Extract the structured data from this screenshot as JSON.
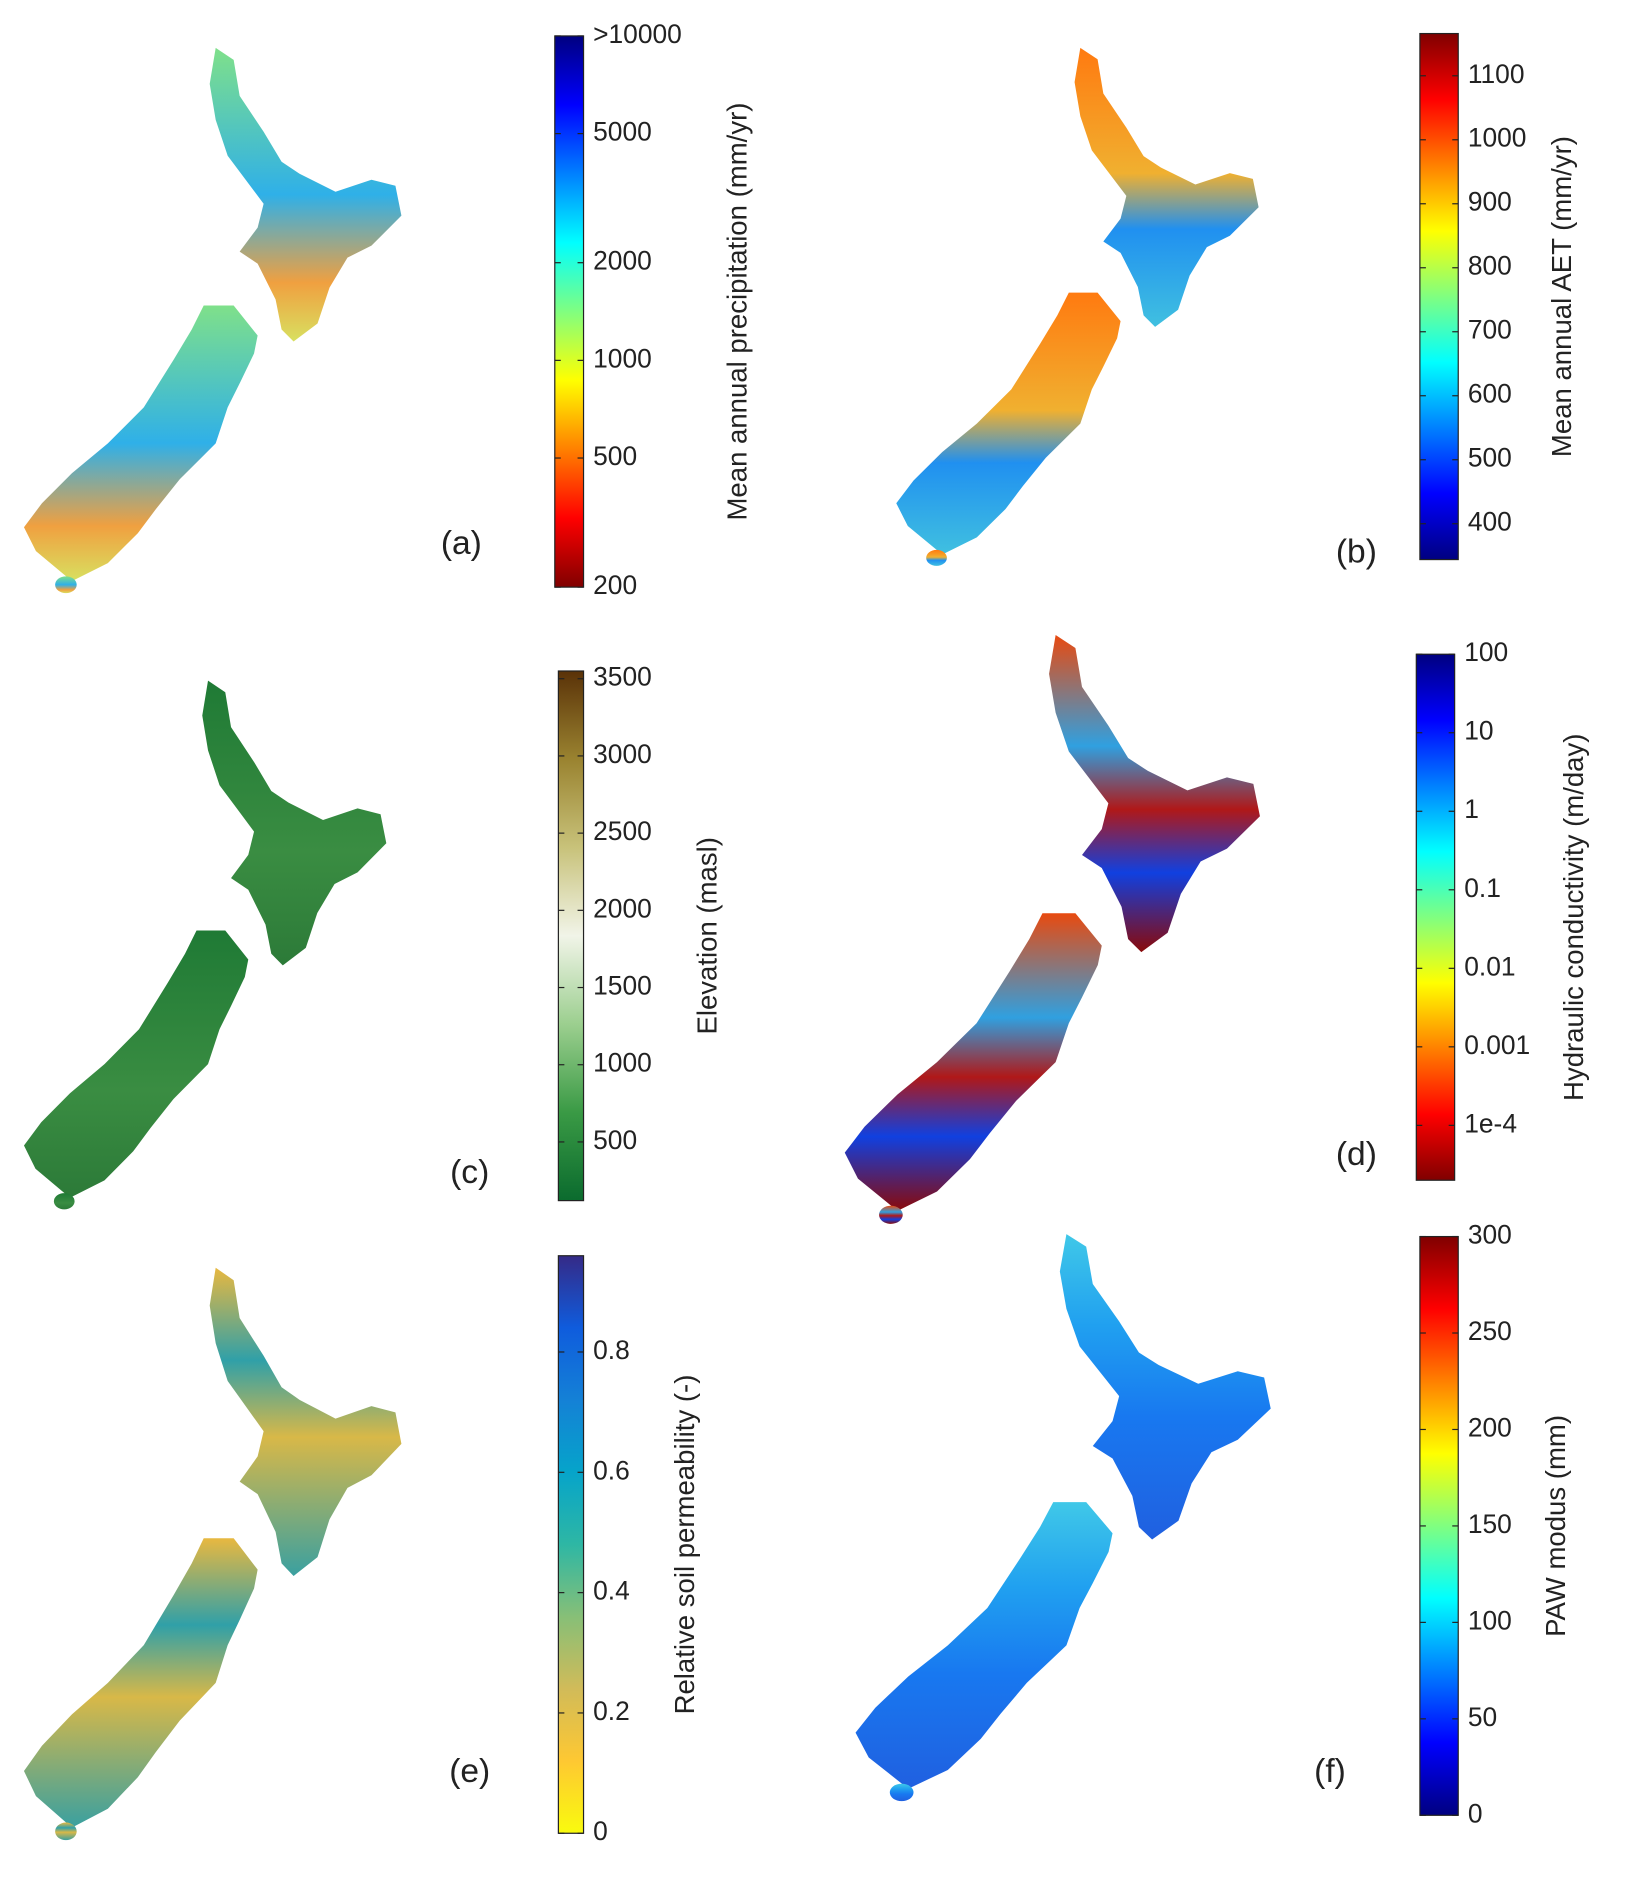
{
  "panels": [
    {
      "label": "(a)",
      "colorbar": {
        "label": "Mean annual precipitation (mm/yr)",
        "scale": "log",
        "lim": [
          200,
          10000
        ],
        "ticks": [
          200,
          500,
          1000,
          2000,
          5000,
          {
            "value": 10000,
            "label": ">10000"
          }
        ],
        "colors": [
          "#800000",
          "#ff0000",
          "#ff8000",
          "#ffff00",
          "#80ff80",
          "#00ffff",
          "#0080ff",
          "#0000ff",
          "#000080"
        ]
      }
    },
    {
      "label": "(b)",
      "colorbar": {
        "label": "Mean annual AET (mm/yr)",
        "scale": "linear",
        "lim": [
          344,
          1166
        ],
        "ticks": [
          400,
          500,
          600,
          700,
          800,
          900,
          1000,
          1100
        ],
        "colors": [
          "#000080",
          "#0000ff",
          "#0080ff",
          "#00ffff",
          "#80ff80",
          "#ffff00",
          "#ff8000",
          "#ff0000",
          "#800000"
        ]
      }
    },
    {
      "label": "(c)",
      "colorbar": {
        "label": "Elevation (masl)",
        "scale": "linear",
        "lim": [
          120,
          3550
        ],
        "ticks": [
          500,
          1000,
          1500,
          2000,
          2500,
          3000,
          3500
        ],
        "colors": [
          "#0b6b2e",
          "#3a9a45",
          "#9ccf8f",
          "#f1f4e8",
          "#c8c27a",
          "#9a8330",
          "#5a3208"
        ]
      }
    },
    {
      "label": "(d)",
      "colorbar": {
        "label": "Hydraulic conductivity (m/day)",
        "scale": "log",
        "lim": [
          2e-05,
          100
        ],
        "ticks": [
          {
            "value": 0.0001,
            "label": "1e-4"
          },
          0.001,
          0.01,
          0.1,
          1,
          10,
          100
        ],
        "colors": [
          "#800000",
          "#ff0000",
          "#ff8000",
          "#ffff00",
          "#80ff80",
          "#00ffff",
          "#0080ff",
          "#0000ff",
          "#000080"
        ]
      }
    },
    {
      "label": "(e)",
      "colorbar": {
        "label": "Relative soil permeability (-)",
        "scale": "linear",
        "lim": [
          0,
          0.96
        ],
        "ticks": [
          0,
          0.2,
          0.4,
          0.6,
          0.8
        ],
        "colors": [
          "#f9fb0e",
          "#fec832",
          "#d1bb59",
          "#87bf77",
          "#2eb7a4",
          "#06a4ca",
          "#1481d6",
          "#0f5cdd",
          "#352a87"
        ]
      }
    },
    {
      "label": "(f)",
      "colorbar": {
        "label": "PAW modus (mm)",
        "scale": "linear",
        "lim": [
          0,
          300
        ],
        "ticks": [
          0,
          50,
          100,
          150,
          200,
          250,
          300
        ],
        "colors": [
          "#000080",
          "#0000ff",
          "#0080ff",
          "#00ffff",
          "#80ff80",
          "#ffff00",
          "#ff8000",
          "#ff0000",
          "#800000"
        ]
      }
    }
  ]
}
